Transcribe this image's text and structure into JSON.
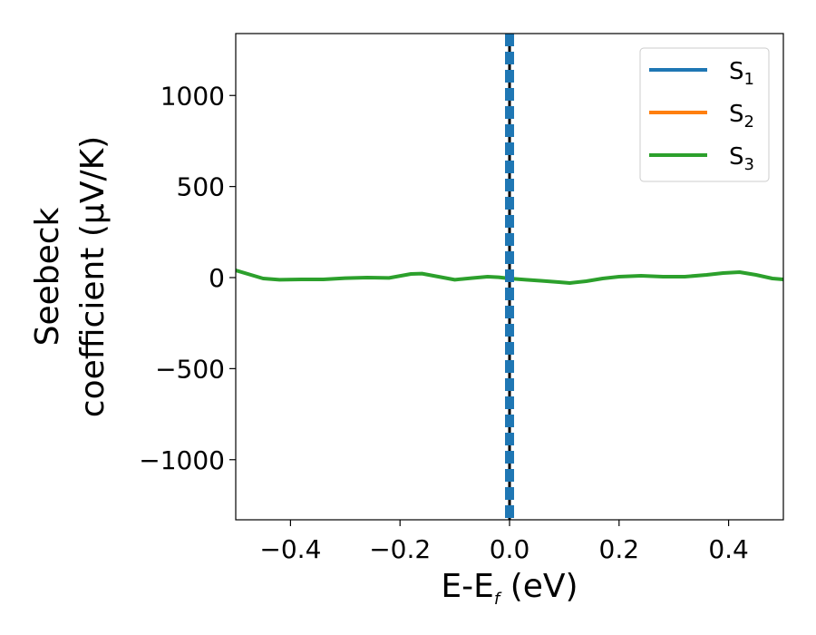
{
  "chart_data": {
    "type": "line",
    "xlabel": {
      "main": "E-E",
      "sub": "f",
      "suffix": " (eV)"
    },
    "ylabel": {
      "line1": "Seebeck",
      "line2": "coefficient  (μV/K)"
    },
    "xlim": [
      -0.5,
      0.5
    ],
    "ylim": [
      -1330,
      1340
    ],
    "xticks": [
      -0.4,
      -0.2,
      0.0,
      0.2,
      0.4
    ],
    "xtick_labels": [
      "−0.4",
      "−0.2",
      "0.0",
      "0.2",
      "0.4"
    ],
    "yticks": [
      -1000,
      -500,
      0,
      500,
      1000
    ],
    "ytick_labels": [
      "−1000",
      "−500",
      "0",
      "500",
      "1000"
    ],
    "grid": false,
    "legend_position": "top-right",
    "series": [
      {
        "name": "S",
        "sub": "1",
        "color": "#1f77b4",
        "x": [],
        "y": []
      },
      {
        "name": "S",
        "sub": "2",
        "color": "#ff7f0e",
        "x": [],
        "y": []
      },
      {
        "name": "S",
        "sub": "3",
        "color": "#2ca02c",
        "x": [
          -0.5,
          -0.45,
          -0.42,
          -0.38,
          -0.34,
          -0.3,
          -0.26,
          -0.22,
          -0.18,
          -0.16,
          -0.13,
          -0.1,
          -0.07,
          -0.04,
          -0.02,
          0.0,
          0.03,
          0.06,
          0.09,
          0.11,
          0.14,
          0.17,
          0.2,
          0.24,
          0.28,
          0.32,
          0.36,
          0.39,
          0.42,
          0.45,
          0.48,
          0.5
        ],
        "y": [
          40,
          -5,
          -12,
          -10,
          -10,
          -3,
          0,
          -2,
          20,
          22,
          5,
          -12,
          -3,
          5,
          2,
          -5,
          -12,
          -18,
          -25,
          -30,
          -20,
          -5,
          5,
          10,
          5,
          5,
          15,
          25,
          30,
          15,
          -5,
          -10
        ]
      }
    ],
    "vertical_lines": [
      {
        "x": 0.0,
        "color": "#000000",
        "style": "dashed"
      },
      {
        "x": 0.0,
        "color": "#1f77b4",
        "style": "dashed"
      }
    ]
  }
}
